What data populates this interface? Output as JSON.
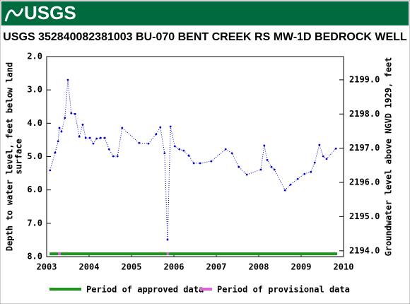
{
  "header": {
    "logo": "USGS"
  },
  "chart_data": {
    "type": "line",
    "title": "USGS 352840082381003 BU-070 BENT CREEK RS MW-1D BEDROCK WELL",
    "ylabel": [
      "Depth to water level, feet below land",
      "surface"
    ],
    "y2label": "Groundwater level above NGVD 1929, feet",
    "x": [
      2003.08,
      2003.2,
      2003.27,
      2003.3,
      2003.35,
      2003.43,
      2003.5,
      2003.58,
      2003.67,
      2003.77,
      2003.85,
      2003.92,
      2004.02,
      2004.1,
      2004.18,
      2004.27,
      2004.37,
      2004.47,
      2004.57,
      2004.67,
      2004.78,
      2005.18,
      2005.4,
      2005.58,
      2005.68,
      2005.78,
      2005.85,
      2005.92,
      2006.02,
      2006.13,
      2006.23,
      2006.35,
      2006.47,
      2006.62,
      2006.88,
      2007.22,
      2007.37,
      2007.53,
      2007.72,
      2008.05,
      2008.13,
      2008.2,
      2008.3,
      2008.37,
      2008.62,
      2008.75,
      2008.92,
      2009.08,
      2009.23,
      2009.32,
      2009.43,
      2009.52,
      2009.6,
      2009.82
    ],
    "series": [
      {
        "color": "#0000cc",
        "values": [
          5.41,
          4.88,
          4.54,
          4.14,
          4.25,
          3.84,
          2.7,
          3.7,
          3.72,
          4.4,
          4.04,
          4.44,
          4.44,
          4.61,
          4.46,
          4.44,
          4.44,
          4.78,
          4.99,
          4.99,
          4.14,
          4.59,
          4.61,
          4.33,
          4.12,
          4.9,
          7.49,
          4.1,
          4.69,
          4.78,
          4.82,
          4.97,
          5.2,
          5.2,
          5.14,
          4.78,
          4.9,
          5.31,
          5.54,
          5.39,
          4.67,
          5.1,
          5.31,
          5.39,
          6.01,
          5.84,
          5.67,
          5.52,
          5.46,
          5.18,
          4.65,
          4.99,
          5.07,
          4.76
        ]
      }
    ],
    "xlim": [
      2003,
      2010
    ],
    "xticks": [
      2003,
      2004,
      2005,
      2006,
      2007,
      2008,
      2009,
      2010
    ],
    "ylim": [
      2,
      8
    ],
    "y_inverted": true,
    "yticks": [
      {
        "value": 2,
        "label": "2.0"
      },
      {
        "value": 3,
        "label": "3.0"
      },
      {
        "value": 4,
        "label": "4.0"
      },
      {
        "value": 5,
        "label": "5.0"
      },
      {
        "value": 6,
        "label": "6.0"
      },
      {
        "value": 7,
        "label": "7.0"
      },
      {
        "value": 8,
        "label": "8.0"
      }
    ],
    "y2lim": [
      2193.83,
      2199.68
    ],
    "y2ticks": [
      {
        "value": 2194,
        "label": "2194.0"
      },
      {
        "value": 2195,
        "label": "2195.0"
      },
      {
        "value": 2196,
        "label": "2196.0"
      },
      {
        "value": 2197,
        "label": "2197.0"
      },
      {
        "value": 2198,
        "label": "2198.0"
      },
      {
        "value": 2199,
        "label": "2199.0"
      }
    ],
    "periods": [
      {
        "name": "Period of approved data",
        "color": "#1a961a",
        "ranges": [
          [
            2003.07,
            2009.85
          ]
        ]
      },
      {
        "name": "Period of provisional data",
        "color": "#e060e0",
        "ranges": [
          [
            2003.27,
            2003.33
          ],
          [
            2005.83,
            2005.88
          ]
        ]
      }
    ]
  }
}
